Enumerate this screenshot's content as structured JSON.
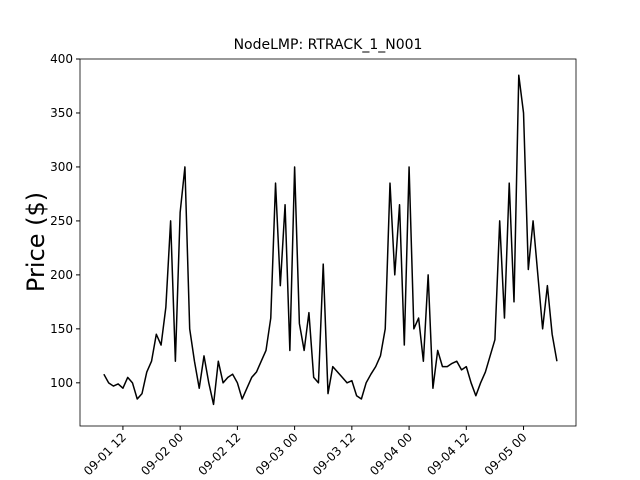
{
  "chart_data": {
    "type": "line",
    "title": "NodeLMP: RTRACK_1_N001",
    "y_label": "Price ($)",
    "color": "#000000",
    "x": [
      "09-01 08",
      "09-01 09",
      "09-01 10",
      "09-01 11",
      "09-01 12",
      "09-01 13",
      "09-01 14",
      "09-01 15",
      "09-01 16",
      "09-01 17",
      "09-01 18",
      "09-01 19",
      "09-01 20",
      "09-01 21",
      "09-01 22",
      "09-01 23",
      "09-02 00",
      "09-02 01",
      "09-02 02",
      "09-02 03",
      "09-02 04",
      "09-02 05",
      "09-02 06",
      "09-02 07",
      "09-02 08",
      "09-02 09",
      "09-02 10",
      "09-02 11",
      "09-02 12",
      "09-02 13",
      "09-02 14",
      "09-02 15",
      "09-02 16",
      "09-02 17",
      "09-02 18",
      "09-02 19",
      "09-02 20",
      "09-02 21",
      "09-02 22",
      "09-02 23",
      "09-03 00",
      "09-03 01",
      "09-03 02",
      "09-03 03",
      "09-03 04",
      "09-03 05",
      "09-03 06",
      "09-03 07",
      "09-03 08",
      "09-03 09",
      "09-03 10",
      "09-03 11",
      "09-03 12",
      "09-03 13",
      "09-03 14",
      "09-03 15",
      "09-03 16",
      "09-03 17",
      "09-03 18",
      "09-03 19",
      "09-03 20",
      "09-03 21",
      "09-03 22",
      "09-03 23",
      "09-04 00",
      "09-04 01",
      "09-04 02",
      "09-04 03",
      "09-04 04",
      "09-04 05",
      "09-04 06",
      "09-04 07",
      "09-04 08",
      "09-04 09",
      "09-04 10",
      "09-04 11",
      "09-04 12",
      "09-04 13",
      "09-04 14",
      "09-04 15",
      "09-04 16",
      "09-04 17",
      "09-04 18",
      "09-04 19",
      "09-04 20",
      "09-04 21",
      "09-04 22",
      "09-04 23",
      "09-05 00",
      "09-05 01",
      "09-05 02",
      "09-05 03",
      "09-05 04",
      "09-05 05",
      "09-05 06",
      "09-05 07"
    ],
    "values": [
      108,
      100,
      97,
      99,
      95,
      105,
      100,
      85,
      90,
      110,
      120,
      145,
      135,
      170,
      250,
      120,
      258,
      300,
      150,
      120,
      95,
      125,
      100,
      80,
      120,
      100,
      105,
      108,
      100,
      85,
      95,
      105,
      110,
      120,
      130,
      160,
      285,
      190,
      265,
      130,
      300,
      155,
      130,
      165,
      105,
      100,
      210,
      90,
      115,
      110,
      105,
      100,
      102,
      88,
      85,
      100,
      108,
      115,
      125,
      150,
      285,
      200,
      265,
      135,
      300,
      150,
      160,
      120,
      200,
      95,
      130,
      115,
      115,
      118,
      120,
      112,
      115,
      100,
      88,
      100,
      110,
      125,
      140,
      250,
      160,
      285,
      175,
      385,
      350,
      205,
      250,
      200,
      150,
      190,
      145,
      120
    ],
    "xlim": [
      "09-01 03",
      "09-05 11"
    ],
    "xticks": [
      "09-01 12",
      "09-02 00",
      "09-02 12",
      "09-03 00",
      "09-03 12",
      "09-04 00",
      "09-04 12",
      "09-05 00"
    ],
    "ylim": [
      60,
      400
    ],
    "yticks": [
      100,
      150,
      200,
      250,
      300,
      350,
      400
    ]
  }
}
